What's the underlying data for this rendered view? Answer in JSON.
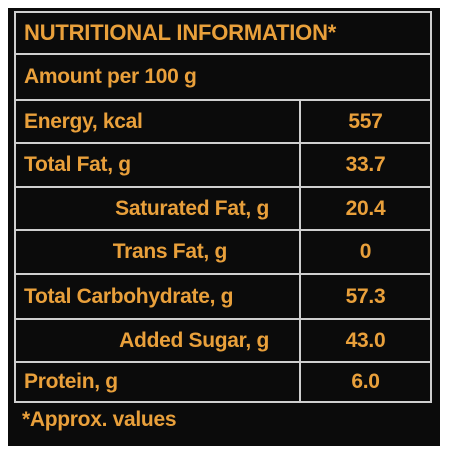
{
  "title": "NUTRITIONAL INFORMATION*",
  "subtitle": "Amount per 100 g",
  "rows": [
    {
      "label": "Energy, kcal",
      "value": "557"
    },
    {
      "label": "Total Fat, g",
      "value": "33.7"
    },
    {
      "label": "Saturated Fat, g",
      "value": "20.4"
    },
    {
      "label": "Trans Fat, g",
      "value": "0"
    },
    {
      "label": "Total Carbohydrate, g",
      "value": "57.3"
    },
    {
      "label": "Added Sugar, g",
      "value": "43.0"
    },
    {
      "label": "Protein, g",
      "value": "6.0"
    }
  ],
  "footnote": "*Approx. values",
  "colors": {
    "background": "#0b0b0b",
    "text": "#e9a03b",
    "border": "#cfcfcf"
  }
}
